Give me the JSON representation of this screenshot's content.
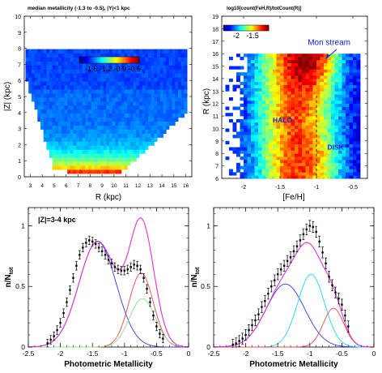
{
  "chart_data": [
    {
      "type": "heatmap",
      "title": "median metallicity (-1.3 to -0.5), |Y|<1 kpc",
      "xlabel": "R (kpc)",
      "ylabel": "|Z| (kpc)",
      "xlim": [
        2.5,
        16.5
      ],
      "ylim": [
        0,
        10
      ],
      "x_ticks": [
        "3",
        "4",
        "5",
        "6",
        "7",
        "8",
        "9",
        "10",
        "11",
        "12",
        "13",
        "14",
        "15",
        "16"
      ],
      "y_ticks": [
        "0",
        "1",
        "2",
        "3",
        "4",
        "5",
        "6",
        "7",
        "8",
        "9",
        "10"
      ],
      "colorbar": {
        "range": [
          -1.75,
          -0.5
        ],
        "ticks": [
          "-1.5",
          "-1.2",
          "-0.9",
          "-0.6"
        ],
        "tick_values": [
          -1.5,
          -1.2,
          -0.9,
          -0.6
        ]
      },
      "grid": false
    },
    {
      "type": "heatmap",
      "title": "log10[count(FeH,R)/totCount(R)]",
      "xlabel": "[Fe/H]",
      "ylabel": "R (kpc)",
      "xlim": [
        -2.3,
        -0.3
      ],
      "ylim": [
        6,
        19
      ],
      "x_ticks": [
        "-2",
        "-1.5",
        "-1",
        "-0.5"
      ],
      "y_ticks": [
        "6",
        "7",
        "8",
        "9",
        "10",
        "11",
        "12",
        "13",
        "14",
        "15",
        "16",
        "17",
        "18",
        "19"
      ],
      "colorbar": {
        "range": [
          -2.4,
          -1.0
        ],
        "ticks": [
          "-2",
          "-1.5"
        ],
        "tick_values": [
          -2,
          -1.5
        ]
      },
      "annotations": [
        {
          "text": "Mon stream",
          "x": -0.87,
          "y": 15.6
        },
        {
          "text": "HALO",
          "x": -1.6,
          "y": 10.5
        },
        {
          "text": "DISK",
          "x": -0.85,
          "y": 8.3
        }
      ],
      "dashed_line_x": -1.0,
      "grid": false
    },
    {
      "type": "line",
      "annotation": "|Z|=3-4 kpc",
      "xlabel": "Photometric Metallicity",
      "ylabel": "n/N",
      "ylabel_sub": "tot",
      "xlim": [
        -2.5,
        0
      ],
      "ylim": [
        0,
        1.15
      ],
      "x_ticks": [
        "-2.5",
        "-2",
        "-1.5",
        "-1",
        "-0.5",
        "0"
      ],
      "y_ticks": [
        "0",
        "0.5",
        "1"
      ],
      "components": [
        {
          "color": "#3a3af0",
          "amp": 0.87,
          "mu": -1.42,
          "sigma": 0.29
        },
        {
          "color": "#f04848",
          "amp": 0.61,
          "mu": -0.74,
          "sigma": 0.19
        },
        {
          "color": "#8ce08c",
          "amp": 0.4,
          "mu": -0.72,
          "sigma": 0.2
        }
      ],
      "total_color": "#e030e0",
      "data_points": {
        "x": [
          -2.2,
          -2.15,
          -2.1,
          -2.05,
          -2.0,
          -1.95,
          -1.9,
          -1.85,
          -1.8,
          -1.75,
          -1.7,
          -1.65,
          -1.6,
          -1.55,
          -1.5,
          -1.45,
          -1.4,
          -1.35,
          -1.3,
          -1.25,
          -1.2,
          -1.15,
          -1.1,
          -1.05,
          -1.0,
          -0.95,
          -0.9,
          -0.85,
          -0.8,
          -0.75,
          -0.7,
          -0.65,
          -0.6,
          -0.55,
          -0.5,
          -0.45,
          -0.4
        ],
        "y": [
          0.03,
          0.06,
          0.09,
          0.14,
          0.2,
          0.28,
          0.37,
          0.47,
          0.57,
          0.67,
          0.76,
          0.82,
          0.86,
          0.88,
          0.87,
          0.85,
          0.82,
          0.79,
          0.76,
          0.72,
          0.69,
          0.66,
          0.64,
          0.63,
          0.63,
          0.64,
          0.66,
          0.68,
          0.67,
          0.64,
          0.57,
          0.48,
          0.37,
          0.26,
          0.17,
          0.11,
          0.07
        ],
        "err": 0.035
      }
    },
    {
      "type": "line",
      "annotation": "",
      "xlabel": "Photometric Metallicity",
      "ylabel": "n/N",
      "ylabel_sub": "tot",
      "xlim": [
        -2.5,
        0
      ],
      "ylim": [
        0,
        1.15
      ],
      "x_ticks": [
        "-2.5",
        "-2",
        "-1.5",
        "-1",
        "-0.5",
        "0"
      ],
      "y_ticks": [
        "0",
        "0.5",
        "1"
      ],
      "components": [
        {
          "color": "#3a3af0",
          "amp": 0.52,
          "mu": -1.38,
          "sigma": 0.3
        },
        {
          "color": "#20d8ec",
          "amp": 0.6,
          "mu": -0.98,
          "sigma": 0.21
        },
        {
          "color": "#f04848",
          "amp": 0.32,
          "mu": -0.63,
          "sigma": 0.16
        }
      ],
      "total_color": "#e030e0",
      "data_points": {
        "x": [
          -2.2,
          -2.15,
          -2.1,
          -2.05,
          -2.0,
          -1.95,
          -1.9,
          -1.85,
          -1.8,
          -1.75,
          -1.7,
          -1.65,
          -1.6,
          -1.55,
          -1.5,
          -1.45,
          -1.4,
          -1.35,
          -1.3,
          -1.25,
          -1.2,
          -1.15,
          -1.1,
          -1.05,
          -1.0,
          -0.95,
          -0.9,
          -0.85,
          -0.8,
          -0.75,
          -0.7,
          -0.65,
          -0.6,
          -0.55,
          -0.5,
          -0.45,
          -0.4
        ],
        "y": [
          0.02,
          0.03,
          0.05,
          0.07,
          0.1,
          0.14,
          0.18,
          0.22,
          0.27,
          0.33,
          0.38,
          0.44,
          0.5,
          0.55,
          0.6,
          0.64,
          0.67,
          0.71,
          0.74,
          0.79,
          0.83,
          0.88,
          0.93,
          0.97,
          1.0,
          0.99,
          0.95,
          0.87,
          0.78,
          0.69,
          0.58,
          0.51,
          0.45,
          0.4,
          0.35,
          0.26,
          0.17
        ],
        "err": 0.045
      }
    }
  ]
}
